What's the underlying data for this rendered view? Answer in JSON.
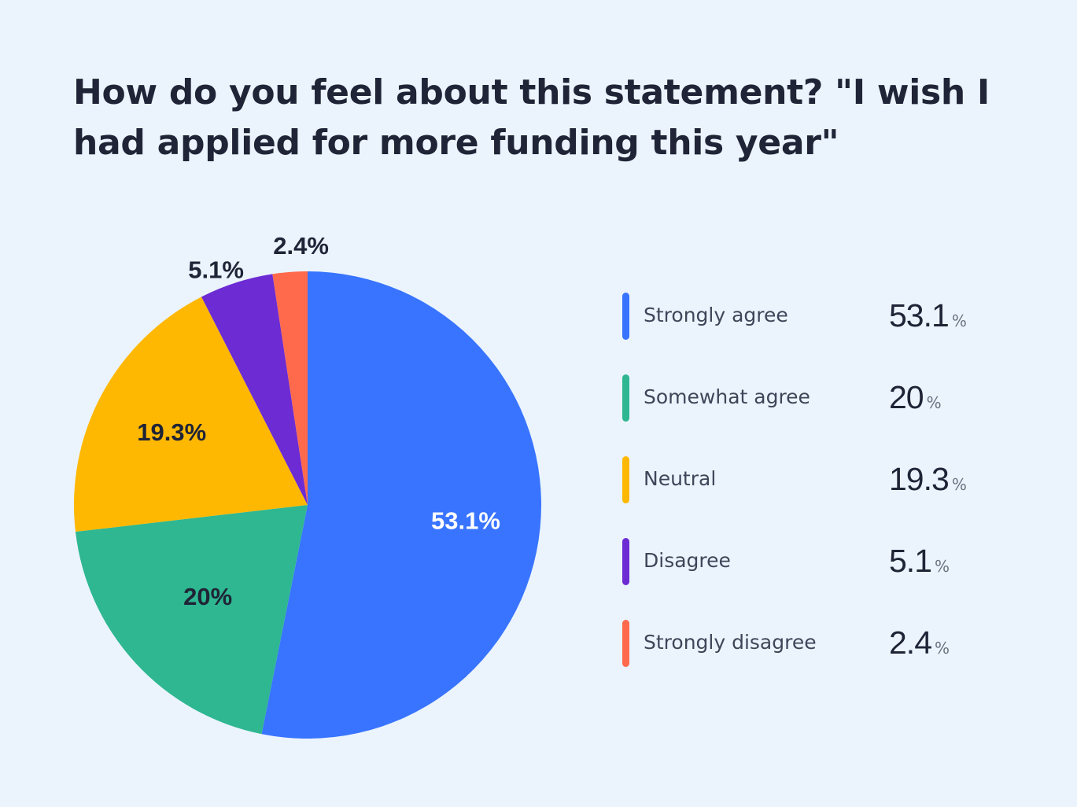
{
  "title": "How do you feel about this statement? \"I wish I had applied for more funding this year\"",
  "chart_data": {
    "type": "pie",
    "title": "How do you feel about this statement? \"I wish I had applied for more funding this year\"",
    "categories": [
      "Strongly agree",
      "Somewhat agree",
      "Neutral",
      "Disagree",
      "Strongly disagree"
    ],
    "values": [
      53.1,
      20,
      19.3,
      5.1,
      2.4
    ],
    "slice_labels": [
      "53.1%",
      "20%",
      "19.3%",
      "5.1%",
      "2.4%"
    ],
    "colors": [
      "#3874ff",
      "#2eb791",
      "#ffb802",
      "#6c2bd3",
      "#ff6a4d"
    ],
    "label_colors": [
      "#ffffff",
      "#1f2436",
      "#1f2436",
      "#1f2436",
      "#1f2436"
    ],
    "legend_placement": "right",
    "legend": [
      {
        "label": "Strongly agree",
        "value": "53.1",
        "unit": "%"
      },
      {
        "label": "Somewhat agree",
        "value": "20",
        "unit": "%"
      },
      {
        "label": "Neutral",
        "value": "19.3",
        "unit": "%"
      },
      {
        "label": "Disagree",
        "value": "5.1",
        "unit": "%"
      },
      {
        "label": "Strongly disagree",
        "value": "2.4",
        "unit": "%"
      }
    ]
  }
}
